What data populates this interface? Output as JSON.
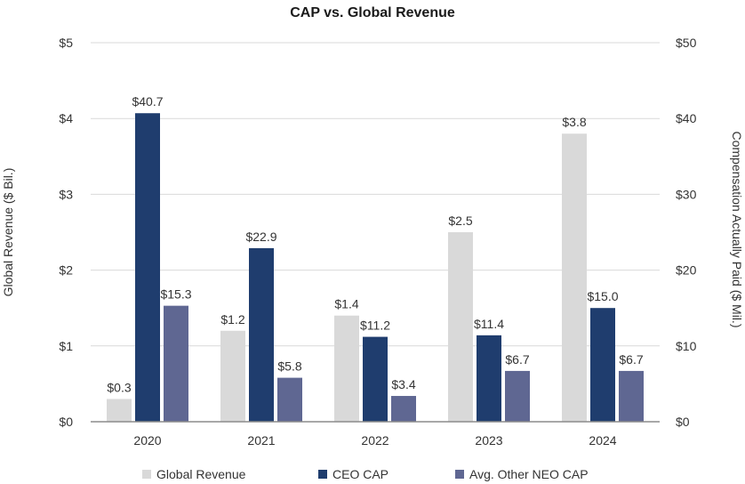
{
  "chart_data": {
    "type": "bar",
    "title": "CAP vs. Global Revenue",
    "categories": [
      "2020",
      "2021",
      "2022",
      "2023",
      "2024"
    ],
    "ylabel_left": "Global Revenue ($ Bil.)",
    "ylabel_right": "Compensation Actually Paid ($ Mil.)",
    "ylim_left": [
      0,
      5
    ],
    "ylim_right": [
      0,
      50
    ],
    "yticks_left": [
      "$0",
      "$1",
      "$2",
      "$3",
      "$4",
      "$5"
    ],
    "yticks_right": [
      "$0",
      "$10",
      "$20",
      "$30",
      "$40",
      "$50"
    ],
    "grid": true,
    "legend_position": "bottom",
    "series": [
      {
        "name": "Global Revenue",
        "axis": "left",
        "color": "#d9d9d9",
        "values": [
          0.3,
          1.2,
          1.4,
          2.5,
          3.8
        ],
        "labels": [
          "$0.3",
          "$1.2",
          "$1.4",
          "$2.5",
          "$3.8"
        ]
      },
      {
        "name": "CEO CAP",
        "axis": "right",
        "color": "#1f3d6e",
        "values": [
          40.7,
          22.9,
          11.2,
          11.4,
          15.0
        ],
        "labels": [
          "$40.7",
          "$22.9",
          "$11.2",
          "$11.4",
          "$15.0"
        ]
      },
      {
        "name": "Avg. Other NEO CAP",
        "axis": "right",
        "color": "#5f6792",
        "values": [
          15.3,
          5.8,
          3.4,
          6.7,
          6.7
        ],
        "labels": [
          "$15.3",
          "$5.8",
          "$3.4",
          "$6.7",
          "$6.7"
        ]
      }
    ]
  }
}
